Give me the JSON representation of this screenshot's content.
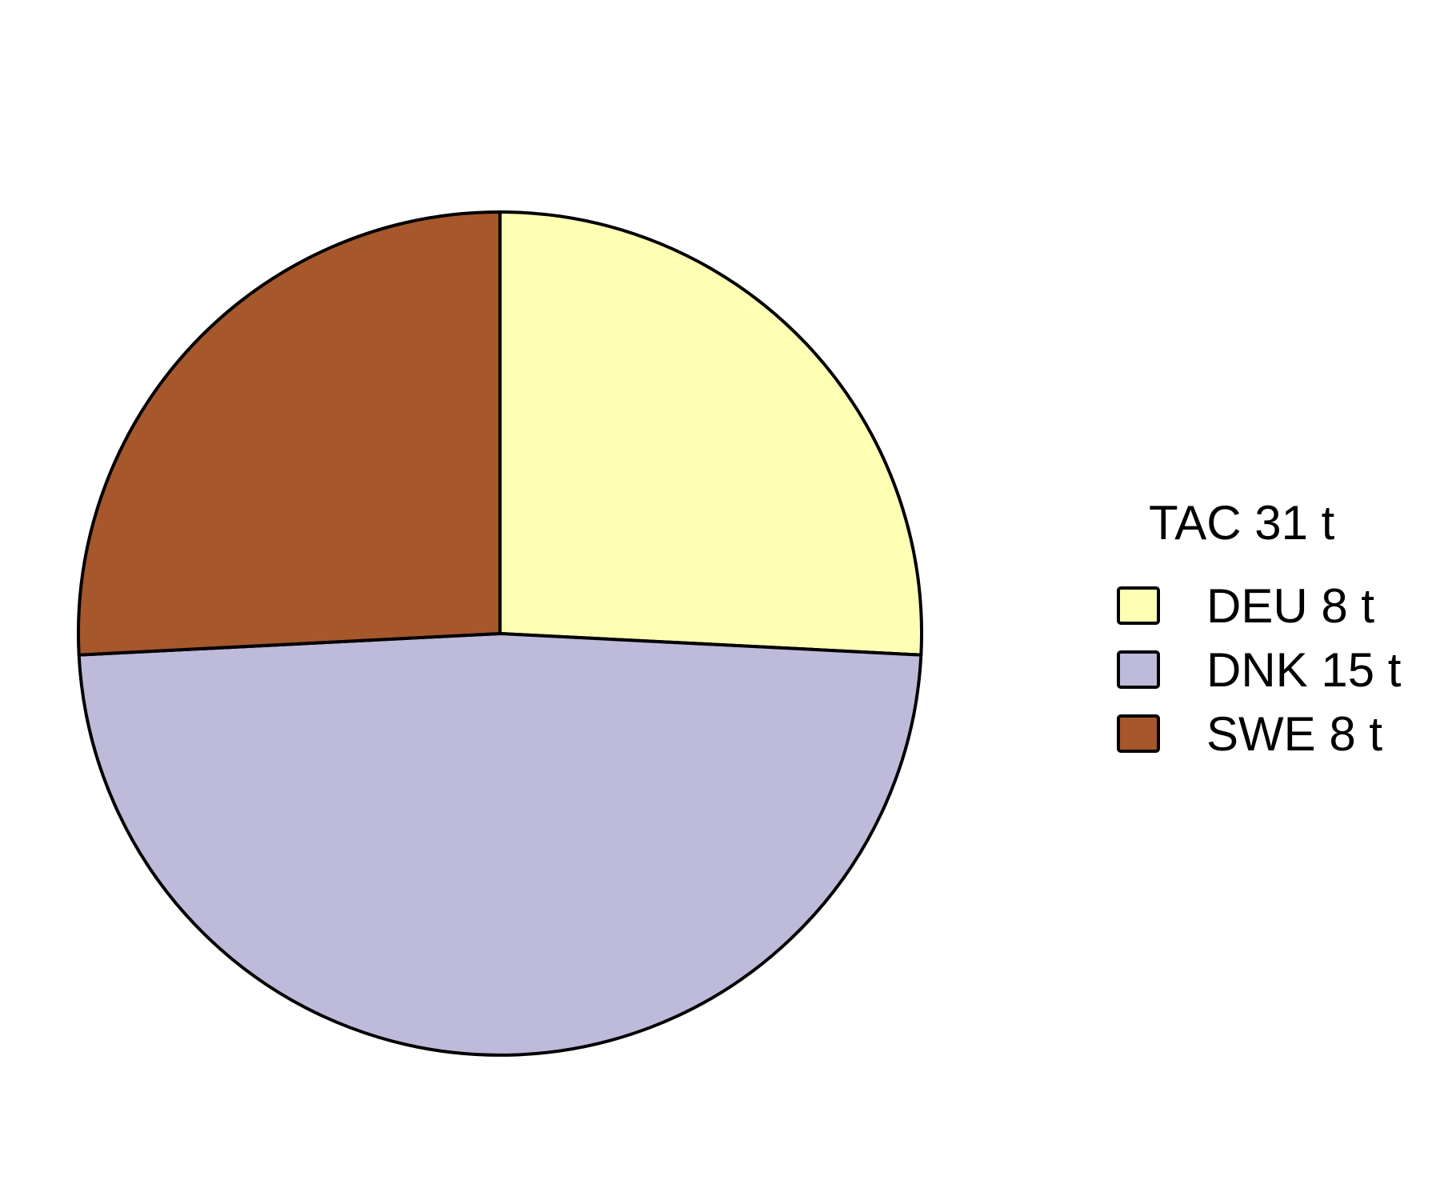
{
  "chart_data": {
    "type": "pie",
    "legend_title": "TAC 31 t",
    "legend_position": "right",
    "start": "12 o'clock",
    "direction": "clockwise",
    "slices": [
      {
        "key": "deu",
        "label": "DEU 8 t",
        "category": "DEU",
        "value": 8,
        "color": "#FFFFB3"
      },
      {
        "key": "dnk",
        "label": "DNK 15 t",
        "category": "DNK",
        "value": 15,
        "color": "#BEBADA"
      },
      {
        "key": "swe",
        "label": "SWE 8 t",
        "category": "SWE",
        "value": 8,
        "color": "#A6572C"
      }
    ]
  }
}
